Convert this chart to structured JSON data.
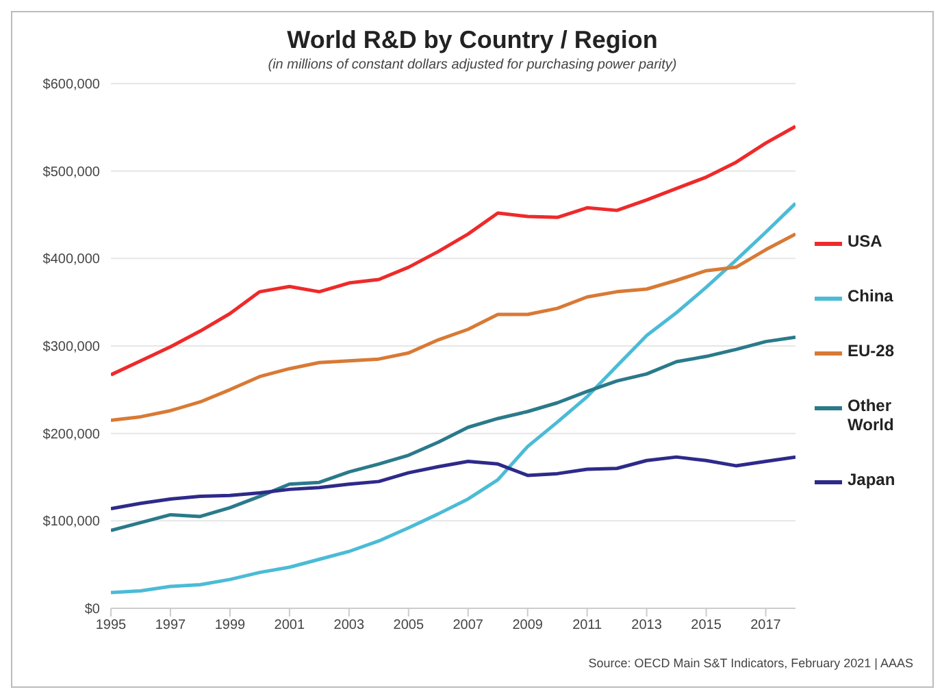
{
  "chart_data": {
    "type": "line",
    "title": "World R&D by Country / Region",
    "subtitle": "(in millions of constant dollars adjusted for purchasing power parity)",
    "annotations": [
      "Source: OECD Main S&T Indicators, February 2021 | AAAS"
    ],
    "x": [
      1995,
      1996,
      1997,
      1998,
      1999,
      2000,
      2001,
      2002,
      2003,
      2004,
      2005,
      2006,
      2007,
      2008,
      2009,
      2010,
      2011,
      2012,
      2013,
      2014,
      2015,
      2016,
      2017,
      2018
    ],
    "series": [
      {
        "name": "USA",
        "color": "#ee2a2a",
        "values": [
          267000,
          283000,
          299000,
          317000,
          337000,
          362000,
          368000,
          362000,
          372000,
          376000,
          390000,
          408000,
          428000,
          452000,
          448000,
          447000,
          458000,
          455000,
          467000,
          480000,
          493000,
          510000,
          532000,
          551000
        ]
      },
      {
        "name": "China",
        "color": "#4bbbd6",
        "values": [
          18000,
          20000,
          25000,
          27000,
          33000,
          41000,
          47000,
          56000,
          65000,
          77000,
          92000,
          108000,
          125000,
          147000,
          185000,
          213000,
          242000,
          277000,
          312000,
          338000,
          367000,
          398000,
          430000,
          463000
        ]
      },
      {
        "name": "EU-28",
        "color": "#d87a35",
        "values": [
          215000,
          219000,
          226000,
          236000,
          250000,
          265000,
          274000,
          281000,
          283000,
          285000,
          292000,
          307000,
          319000,
          336000,
          336000,
          343000,
          356000,
          362000,
          365000,
          375000,
          386000,
          390000,
          410000,
          428000
        ]
      },
      {
        "name": "Other World",
        "color": "#2a7a8a",
        "values": [
          89000,
          98000,
          107000,
          105000,
          115000,
          128000,
          142000,
          144000,
          156000,
          165000,
          175000,
          190000,
          207000,
          217000,
          225000,
          235000,
          248000,
          260000,
          268000,
          282000,
          288000,
          296000,
          305000,
          310000
        ]
      },
      {
        "name": "Japan",
        "color": "#2e2a8a",
        "values": [
          114000,
          120000,
          125000,
          128000,
          129000,
          132000,
          136000,
          138000,
          142000,
          145000,
          155000,
          162000,
          168000,
          165000,
          152000,
          154000,
          159000,
          160000,
          169000,
          173000,
          169000,
          163000,
          168000,
          173000
        ]
      }
    ],
    "xlim": [
      1995,
      2018
    ],
    "xticks": [
      1995,
      1997,
      1999,
      2001,
      2003,
      2005,
      2007,
      2009,
      2011,
      2013,
      2015,
      2017
    ],
    "ylim": [
      0,
      600000
    ],
    "yticks": [
      {
        "value": 0,
        "label": "$0"
      },
      {
        "value": 100000,
        "label": "$100,000"
      },
      {
        "value": 200000,
        "label": "$200,000"
      },
      {
        "value": 300000,
        "label": "$300,000"
      },
      {
        "value": 400000,
        "label": "$400,000"
      },
      {
        "value": 500000,
        "label": "$500,000"
      },
      {
        "value": 600000,
        "label": "$600,000"
      }
    ],
    "grid": "y",
    "legend": "right",
    "marker": "none",
    "line_style": "solid"
  }
}
